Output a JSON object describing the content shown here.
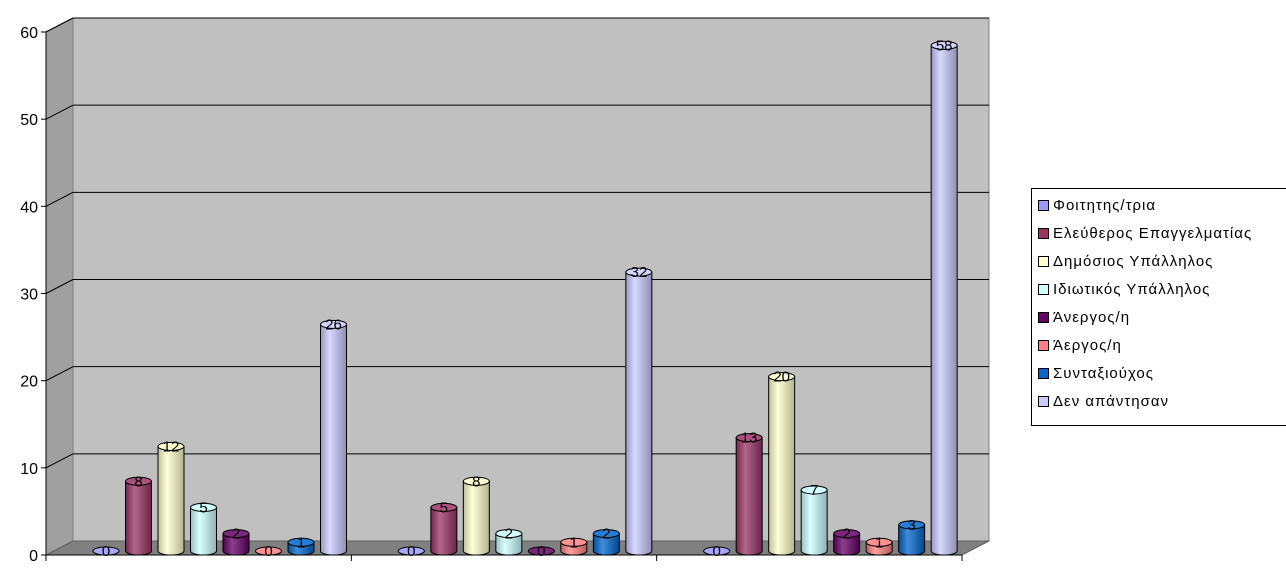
{
  "chart_data": {
    "type": "bar",
    "categories": [
      "",
      "",
      ""
    ],
    "series": [
      {
        "name": "Φοιτητης/τρια",
        "color": "#9999FF",
        "values": [
          0,
          0,
          0
        ]
      },
      {
        "name": "Ελεύθερος Επαγγελματίας",
        "color": "#993366",
        "values": [
          8,
          5,
          13
        ]
      },
      {
        "name": "Δημόσιος Υπάλληλος",
        "color": "#FFFFCC",
        "values": [
          12,
          8,
          20
        ]
      },
      {
        "name": "Ιδιωτικός Υπάλληλος",
        "color": "#CCFFFF",
        "values": [
          5,
          2,
          7
        ]
      },
      {
        "name": "Άνεργος/η",
        "color": "#660066",
        "values": [
          2,
          0,
          2
        ]
      },
      {
        "name": "Άεργος/η",
        "color": "#FF8080",
        "values": [
          0,
          1,
          1
        ]
      },
      {
        "name": "Συνταξιούχος",
        "color": "#0066CC",
        "values": [
          1,
          2,
          3
        ]
      },
      {
        "name": "Δεν απάντησαν",
        "color": "#CCCCFF",
        "values": [
          26,
          32,
          58
        ]
      }
    ],
    "yticks": [
      "0",
      "10",
      "20",
      "30",
      "40",
      "50",
      "60"
    ],
    "ylim": [
      0,
      60
    ],
    "grid": true,
    "legend_position": "right",
    "title": "",
    "xlabel": "",
    "ylabel": ""
  }
}
